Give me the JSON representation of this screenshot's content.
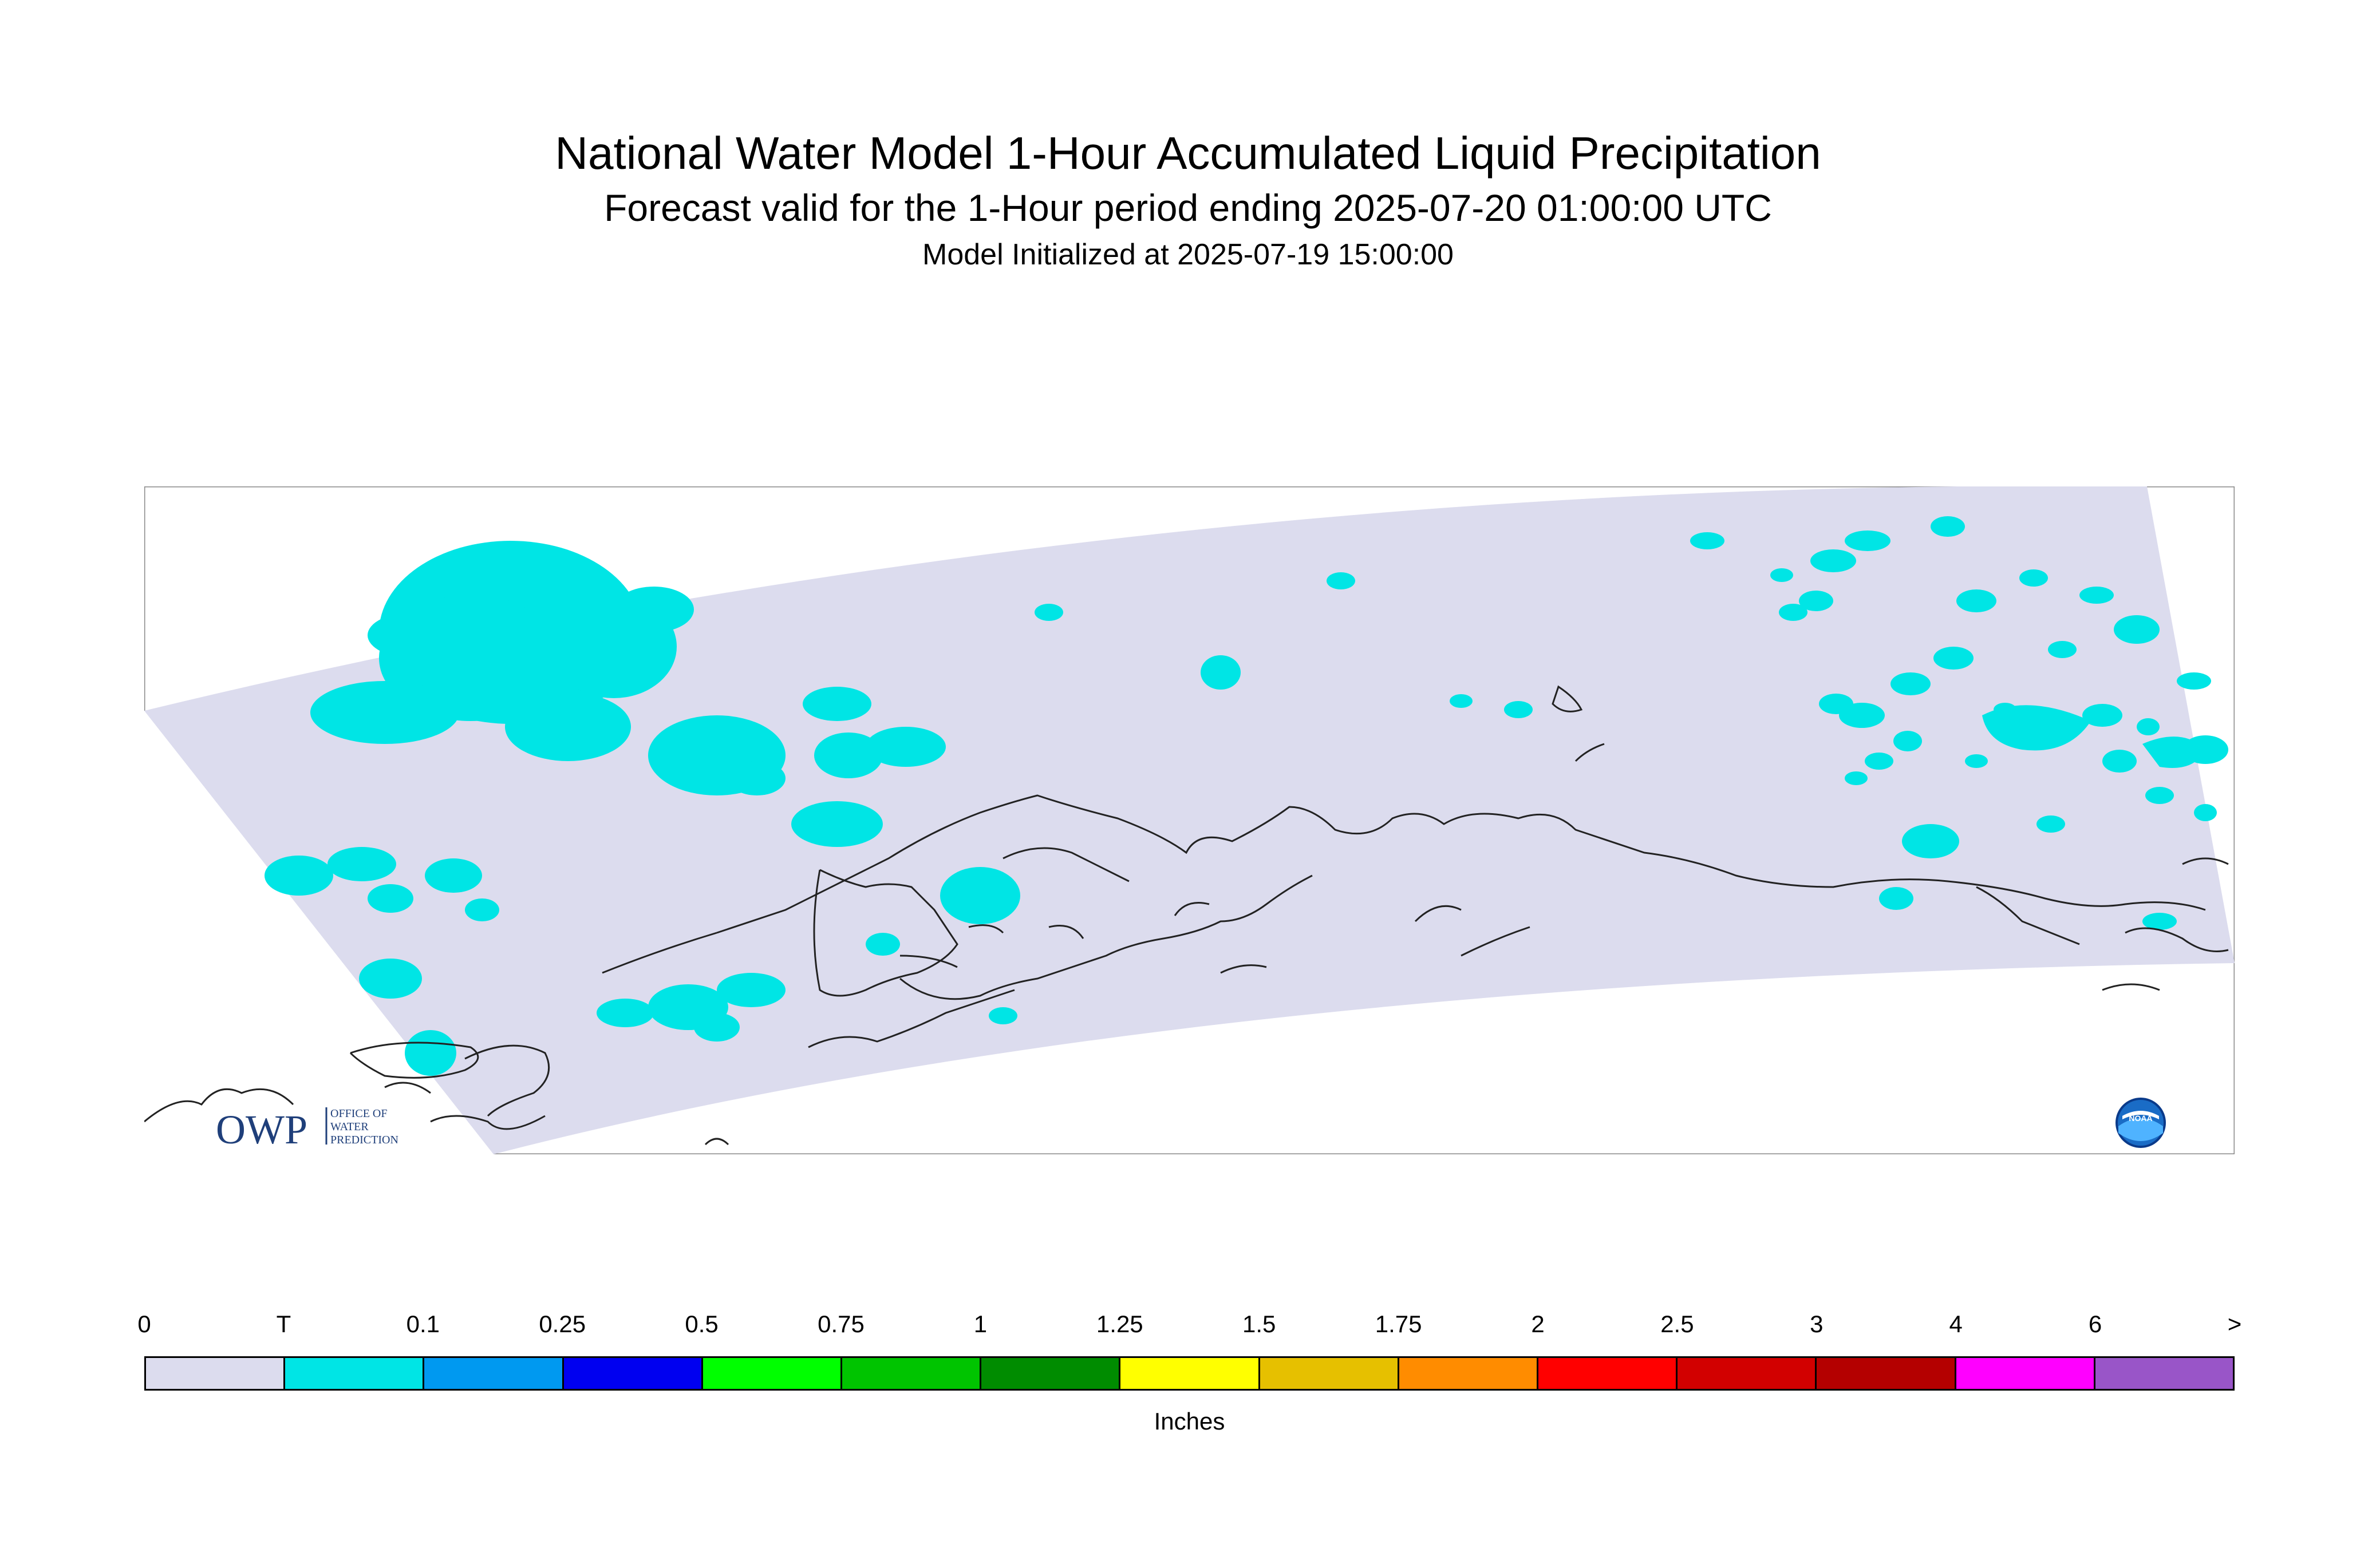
{
  "header": {
    "title": "National Water Model 1-Hour Accumulated Liquid Precipitation",
    "subtitle": "Forecast valid for the 1-Hour period ending 2025-07-20 01:00:00 UTC",
    "init": "Model Initialized at 2025-07-19 15:00:00"
  },
  "legend": {
    "units": "Inches",
    "labels": [
      "0",
      "T",
      "0.1",
      "0.25",
      "0.5",
      "0.75",
      "1",
      "1.25",
      "1.5",
      "1.75",
      "2",
      "2.5",
      "3",
      "4",
      "6",
      ">"
    ],
    "colors": [
      "#dcdcee",
      "#00e5e5",
      "#0099f0",
      "#0000f0",
      "#00ff00",
      "#00c400",
      "#008c00",
      "#ffff00",
      "#e6c000",
      "#ff8c00",
      "#ff0000",
      "#d20000",
      "#b40000",
      "#ff00ff",
      "#9955c8"
    ]
  },
  "map": {
    "domain_color": "#dcdcee",
    "precip_color": "#00e5e5",
    "coastline_color": "#222222"
  },
  "logos": {
    "owp_mark": "OWP",
    "owp_line1": "OFFICE OF",
    "owp_line2": "WATER",
    "owp_line3": "PREDICTION",
    "noaa": "NOAA"
  }
}
